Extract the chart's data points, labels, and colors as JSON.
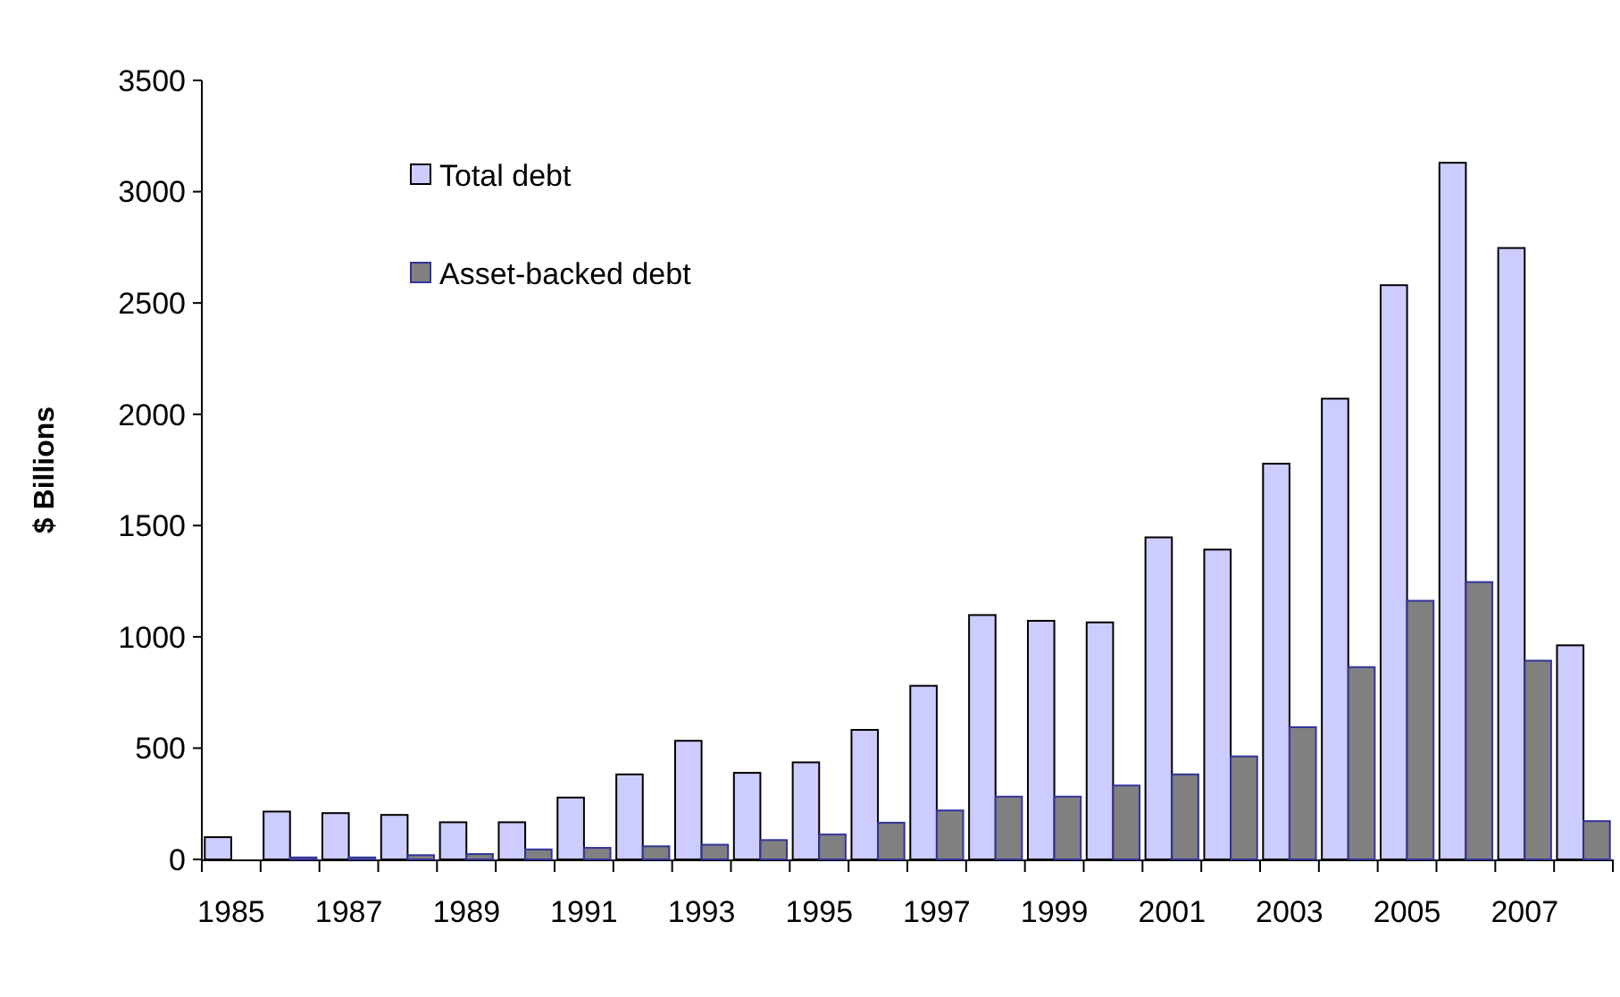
{
  "chart_data": {
    "type": "bar",
    "ylabel": "$ Billions",
    "categories": [
      "1985",
      null,
      "1987",
      null,
      "1989",
      null,
      "1991",
      null,
      "1993",
      null,
      "1995",
      null,
      "1997",
      null,
      "1999",
      null,
      "2001",
      null,
      "2003",
      null,
      "2005",
      null,
      "2007",
      null
    ],
    "series": [
      {
        "name": "Total debt",
        "color": "#ccccff",
        "values": [
          100,
          215,
          208,
          200,
          167,
          167,
          278,
          382,
          533,
          389,
          436,
          582,
          780,
          1098,
          1072,
          1065,
          1447,
          1392,
          1778,
          2070,
          2580,
          3130,
          2747,
          962
        ]
      },
      {
        "name": "Asset-backed debt",
        "color": "#808080",
        "values": [
          0,
          9,
          9,
          19,
          24,
          45,
          52,
          59,
          66,
          87,
          112,
          165,
          220,
          282,
          282,
          332,
          382,
          463,
          594,
          864,
          1162,
          1246,
          893,
          172
        ]
      }
    ],
    "ylim": [
      0,
      3500
    ],
    "yticks": [
      0,
      500,
      1000,
      1500,
      2000,
      2500,
      3000,
      3500
    ],
    "legend": "top left"
  }
}
